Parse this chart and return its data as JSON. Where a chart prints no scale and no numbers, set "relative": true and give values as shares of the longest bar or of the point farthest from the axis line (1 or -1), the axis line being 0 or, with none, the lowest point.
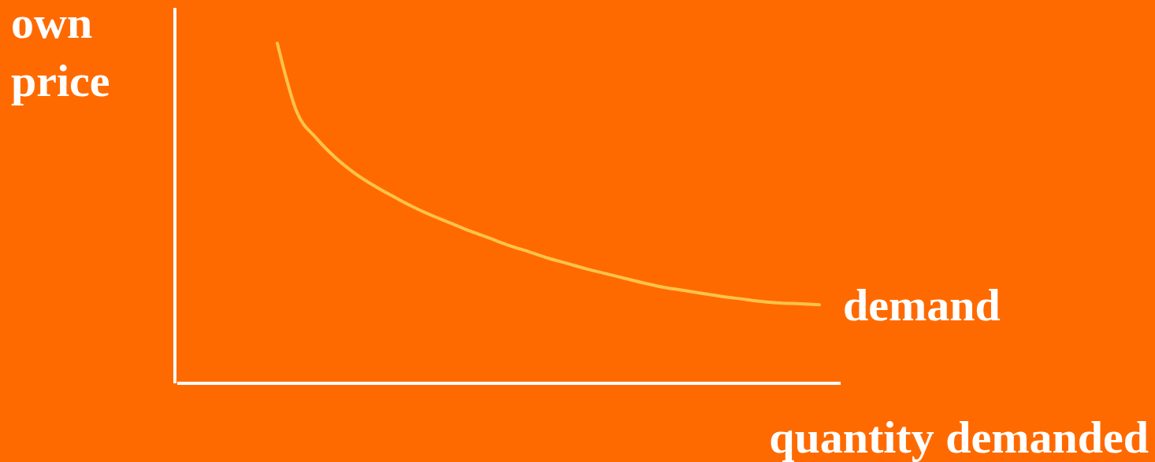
{
  "chart_data": {
    "type": "line",
    "relative": true,
    "xlabel": "quantity demanded",
    "ylabel": "own price",
    "categories": [
      null,
      null,
      null,
      null,
      null,
      null,
      null,
      null,
      null,
      null,
      null,
      null,
      null,
      null,
      null,
      null,
      null,
      null,
      null,
      null,
      null,
      null,
      null,
      null,
      null,
      null,
      null,
      null,
      null
    ],
    "series": [
      {
        "name": "demand",
        "color": "#ffc34a",
        "values": [
          1.0,
          0.799,
          0.722,
          0.664,
          0.618,
          0.581,
          0.549,
          0.519,
          0.493,
          0.47,
          0.447,
          0.426,
          0.405,
          0.387,
          0.368,
          0.352,
          0.336,
          0.322,
          0.308,
          0.294,
          0.282,
          0.273,
          0.264,
          0.255,
          0.248,
          0.241,
          0.236,
          0.234,
          0.231
        ]
      }
    ]
  }
}
